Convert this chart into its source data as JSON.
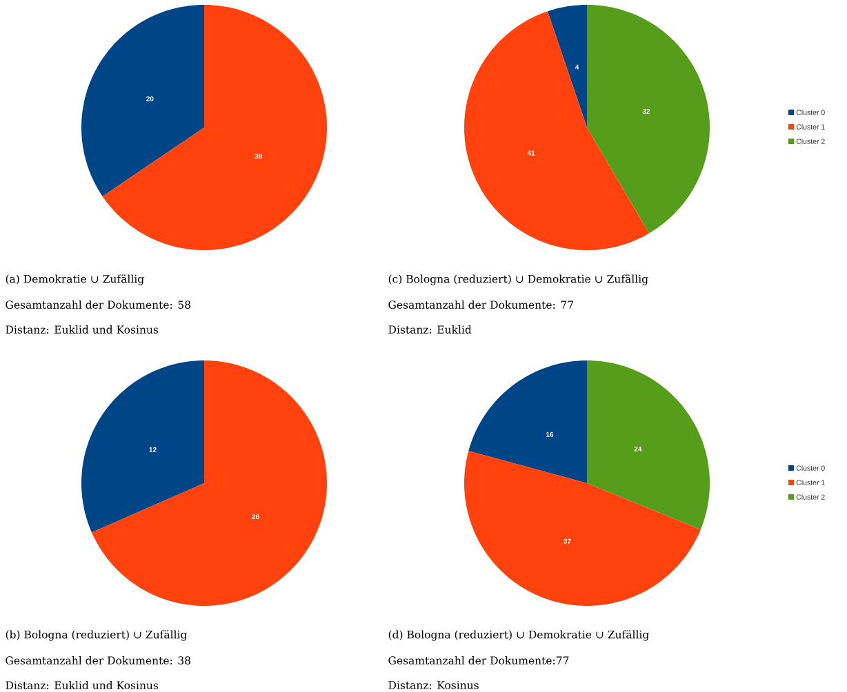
{
  "chart_data": [
    {
      "type": "pie",
      "title": "(a) Demokratie ∪ Zufällig",
      "annotations": [
        "Gesamtanzahl der Dokumente: 58",
        "Distanz: Euklid und Kosinus"
      ],
      "categories": [
        null,
        null
      ],
      "values": [
        20,
        38
      ],
      "colors": [
        "#004586",
        "#ff420e"
      ],
      "data_labels": true
    },
    {
      "type": "pie",
      "title": "(c) Bologna (reduziert) ∪ Demokratie ∪ Zufällig",
      "annotations": [
        "Gesamtanzahl der Dokumente: 77",
        "Distanz: Euklid"
      ],
      "categories": [
        "Cluster 0",
        "Cluster 1",
        "Cluster 2"
      ],
      "values": [
        4,
        41,
        32
      ],
      "colors": [
        "#004586",
        "#ff420e",
        "#579d1c"
      ],
      "data_labels": true,
      "legend": "right"
    },
    {
      "type": "pie",
      "title": "(b) Bologna (reduziert) ∪ Zufällig",
      "annotations": [
        "Gesamtanzahl der Dokumente: 38",
        "Distanz: Euklid und Kosinus"
      ],
      "categories": [
        null,
        null
      ],
      "values": [
        12,
        26
      ],
      "colors": [
        "#004586",
        "#ff420e"
      ],
      "data_labels": true
    },
    {
      "type": "pie",
      "title": "(d) Bologna (reduziert) ∪ Demokratie ∪ Zufällig",
      "annotations": [
        "Gesamtanzahl der Dokumente:77",
        "Distanz: Kosinus"
      ],
      "categories": [
        "Cluster 0",
        "Cluster 1",
        "Cluster 2"
      ],
      "values": [
        16,
        37,
        24
      ],
      "colors": [
        "#004586",
        "#ff420e",
        "#579d1c"
      ],
      "data_labels": true,
      "legend": "right"
    }
  ]
}
